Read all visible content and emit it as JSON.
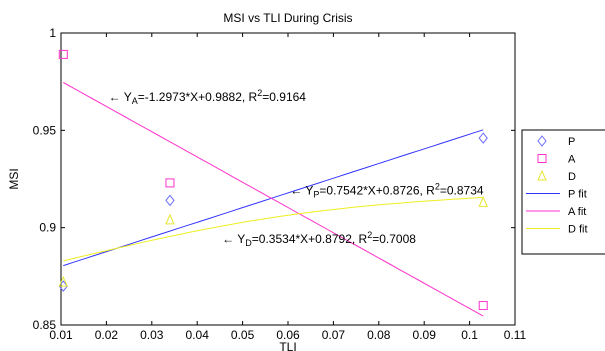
{
  "chart_data": {
    "type": "scatter",
    "title": "MSI vs TLI During Crisis",
    "xlabel": "TLI",
    "ylabel": "MSI",
    "xlim": [
      0.01,
      0.11
    ],
    "ylim": [
      0.85,
      1.0
    ],
    "x_ticks": [
      "0.01",
      "0.02",
      "0.03",
      "0.04",
      "0.05",
      "0.06",
      "0.07",
      "0.08",
      "0.09",
      "0.1",
      "0.11"
    ],
    "y_ticks": [
      "0.85",
      "0.9",
      "0.95",
      "1"
    ],
    "grid": false,
    "legend_position": "right-outside",
    "series": [
      {
        "name": "P",
        "marker": "diamond",
        "color": "#6b6bff",
        "x": [
          0.0105,
          0.034,
          0.103
        ],
        "y": [
          0.87,
          0.914,
          0.946
        ]
      },
      {
        "name": "A",
        "marker": "square",
        "color": "#ff33cc",
        "x": [
          0.0105,
          0.034,
          0.103
        ],
        "y": [
          0.989,
          0.923,
          0.86
        ]
      },
      {
        "name": "D",
        "marker": "triangle",
        "color": "#e6e633",
        "x": [
          0.0105,
          0.034,
          0.103
        ],
        "y": [
          0.872,
          0.904,
          0.913
        ]
      }
    ],
    "fits": [
      {
        "name": "P fit",
        "color": "#3333ff",
        "slope": 0.7542,
        "intercept": 0.8726,
        "curve": 0
      },
      {
        "name": "A fit",
        "color": "#ff33cc",
        "slope": -1.2973,
        "intercept": 0.9882,
        "curve": 0
      },
      {
        "name": "D fit",
        "color": "#eeee22",
        "slope": 0.3534,
        "intercept": 0.8792,
        "curve": 1
      }
    ],
    "annotations": [
      {
        "arrow": "← Y",
        "sub": "A",
        "rest": "=-1.2973*X+0.9882, R",
        "sup": "2",
        "tail": "=0.9164",
        "x": 0.0205,
        "y": 0.965
      },
      {
        "arrow": "← Y",
        "sub": "P",
        "rest": "=0.7542*X+0.8726, R",
        "sup": "2",
        "tail": "=0.8734",
        "x": 0.0605,
        "y": 0.917
      },
      {
        "arrow": "← Y",
        "sub": "D",
        "rest": "=0.3534*X+0.8792, R",
        "sup": "2",
        "tail": "=0.7008",
        "x": 0.0455,
        "y": 0.892
      }
    ]
  }
}
